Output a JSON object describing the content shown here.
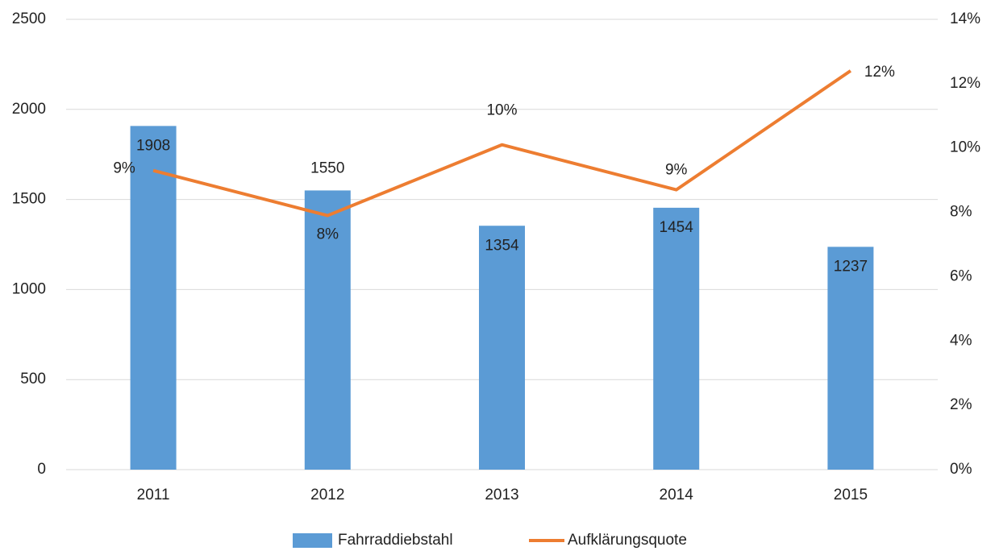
{
  "chart_data": {
    "type": "combo",
    "categories": [
      "2011",
      "2012",
      "2013",
      "2014",
      "2015"
    ],
    "series": [
      {
        "name": "Fahrraddiebstahl",
        "type": "bar",
        "color": "#5b9bd5",
        "values": [
          1908,
          1550,
          1354,
          1454,
          1237
        ]
      },
      {
        "name": "Aufklärungsquote",
        "type": "line",
        "axis": "y2",
        "color": "#ed7d31",
        "values": [
          9.3,
          7.9,
          10.1,
          8.7,
          12.4
        ],
        "value_labels": [
          "9%",
          "8%",
          "10%",
          "9%",
          "12%"
        ]
      }
    ],
    "ylim": [
      0,
      2500
    ],
    "yticks": [
      0,
      500,
      1000,
      1500,
      2000,
      2500
    ],
    "y2lim": [
      0,
      14
    ],
    "y2ticks": [
      {
        "value": 0,
        "label": "0%"
      },
      {
        "value": 2,
        "label": "2%"
      },
      {
        "value": 4,
        "label": "4%"
      },
      {
        "value": 6,
        "label": "6%"
      },
      {
        "value": 8,
        "label": "8%"
      },
      {
        "value": 10,
        "label": "10%"
      },
      {
        "value": 12,
        "label": "12%"
      },
      {
        "value": 14,
        "label": "14%"
      }
    ],
    "grid": true,
    "legend": "bottom"
  }
}
